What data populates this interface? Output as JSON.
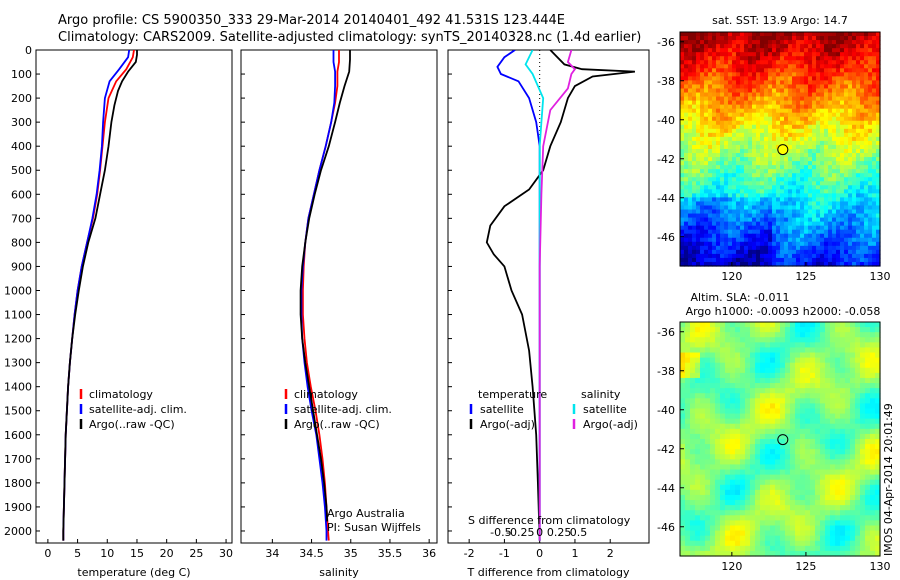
{
  "header": {
    "line1": "Argo profile: CS 5900350_333 29-Mar-2014 20140401_492 41.531S 123.444E",
    "line2": "Climatology: CARS2009. Satellite-adjusted climatology: synTS_20140328.nc (1.4d earlier)"
  },
  "footer_stamp": "IMOS 04-Apr-2014 20:01:49",
  "colors": {
    "climatology": "#ff0000",
    "satellite": "#0000ff",
    "argo": "#000000",
    "cyan": "#00e5ee",
    "magenta": "#e020e0"
  },
  "chart_data": [
    {
      "id": "temperature",
      "type": "line",
      "xlabel": "temperature (deg C)",
      "ylabel": "",
      "xlim": [
        -2,
        31
      ],
      "ylim": [
        2050,
        0
      ],
      "xticks": [
        0,
        5,
        10,
        15,
        20,
        25,
        30
      ],
      "yticks": [
        0,
        100,
        200,
        300,
        400,
        500,
        600,
        700,
        800,
        900,
        1000,
        1100,
        1200,
        1300,
        1400,
        1500,
        1600,
        1700,
        1800,
        1900,
        2000
      ],
      "legend": [
        "climatology",
        "satellite-adj. clim.",
        "Argo(..raw -QC)"
      ],
      "legend_position": "center",
      "series": [
        {
          "name": "climatology",
          "color": "red",
          "points": [
            [
              14.5,
              0
            ],
            [
              14.3,
              30
            ],
            [
              13.2,
              80
            ],
            [
              11.5,
              130
            ],
            [
              10.2,
              200
            ],
            [
              9.6,
              300
            ],
            [
              9.2,
              400
            ],
            [
              8.8,
              500
            ],
            [
              8.3,
              600
            ],
            [
              7.6,
              700
            ],
            [
              6.6,
              800
            ],
            [
              5.7,
              900
            ],
            [
              5,
              1000
            ],
            [
              4.5,
              1100
            ],
            [
              4.1,
              1200
            ],
            [
              3.7,
              1300
            ],
            [
              3.4,
              1400
            ],
            [
              3.2,
              1500
            ],
            [
              3,
              1600
            ],
            [
              2.9,
              1700
            ],
            [
              2.8,
              1800
            ],
            [
              2.7,
              1900
            ],
            [
              2.6,
              2000
            ],
            [
              2.6,
              2040
            ]
          ]
        },
        {
          "name": "satellite-adj. clim.",
          "color": "blue",
          "points": [
            [
              13.7,
              0
            ],
            [
              13.5,
              30
            ],
            [
              12,
              80
            ],
            [
              10.4,
              130
            ],
            [
              9.6,
              200
            ],
            [
              9.3,
              300
            ],
            [
              9.1,
              400
            ],
            [
              8.7,
              500
            ],
            [
              8.2,
              600
            ],
            [
              7.5,
              700
            ],
            [
              6.6,
              800
            ],
            [
              5.7,
              900
            ],
            [
              5,
              1000
            ],
            [
              4.5,
              1100
            ],
            [
              4.1,
              1200
            ],
            [
              3.7,
              1300
            ],
            [
              3.4,
              1400
            ],
            [
              3.2,
              1500
            ],
            [
              3,
              1600
            ],
            [
              2.9,
              1700
            ],
            [
              2.8,
              1800
            ],
            [
              2.7,
              1900
            ],
            [
              2.6,
              2000
            ],
            [
              2.6,
              2040
            ]
          ]
        },
        {
          "name": "Argo(..raw -QC)",
          "color": "black",
          "points": [
            [
              15,
              0
            ],
            [
              15,
              20
            ],
            [
              14.8,
              50
            ],
            [
              13.5,
              90
            ],
            [
              12.5,
              130
            ],
            [
              11.8,
              170
            ],
            [
              11.2,
              230
            ],
            [
              10.7,
              300
            ],
            [
              10.2,
              400
            ],
            [
              9.6,
              500
            ],
            [
              8.8,
              600
            ],
            [
              8,
              700
            ],
            [
              6.8,
              800
            ],
            [
              5.9,
              900
            ],
            [
              5.2,
              1000
            ],
            [
              4.6,
              1100
            ],
            [
              4.1,
              1200
            ],
            [
              3.7,
              1300
            ],
            [
              3.4,
              1400
            ],
            [
              3.2,
              1500
            ],
            [
              3,
              1600
            ],
            [
              2.9,
              1700
            ],
            [
              2.8,
              1800
            ],
            [
              2.7,
              1900
            ],
            [
              2.6,
              2000
            ],
            [
              2.6,
              2040
            ]
          ]
        }
      ]
    },
    {
      "id": "salinity",
      "type": "line",
      "xlabel": "salinity",
      "ylabel": "",
      "xlim": [
        33.6,
        36.1
      ],
      "ylim": [
        2050,
        0
      ],
      "xticks": [
        34,
        34.5,
        35,
        35.5,
        36
      ],
      "legend": [
        "climatology",
        "satellite-adj. clim.",
        "Argo(..raw -QC)"
      ],
      "legend_position": "center",
      "annotation": [
        "Argo Australia",
        "PI: Susan Wijffels"
      ],
      "series": [
        {
          "name": "climatology",
          "color": "red",
          "points": [
            [
              34.85,
              0
            ],
            [
              34.85,
              50
            ],
            [
              34.83,
              90
            ],
            [
              34.83,
              150
            ],
            [
              34.8,
              220
            ],
            [
              34.75,
              300
            ],
            [
              34.68,
              400
            ],
            [
              34.6,
              500
            ],
            [
              34.53,
              600
            ],
            [
              34.46,
              700
            ],
            [
              34.42,
              800
            ],
            [
              34.4,
              900
            ],
            [
              34.39,
              1000
            ],
            [
              34.39,
              1100
            ],
            [
              34.41,
              1200
            ],
            [
              34.44,
              1300
            ],
            [
              34.49,
              1400
            ],
            [
              34.55,
              1500
            ],
            [
              34.6,
              1600
            ],
            [
              34.64,
              1700
            ],
            [
              34.67,
              1800
            ],
            [
              34.69,
              1900
            ],
            [
              34.71,
              2000
            ],
            [
              34.72,
              2040
            ]
          ]
        },
        {
          "name": "satellite-adj. clim.",
          "color": "blue",
          "points": [
            [
              34.78,
              0
            ],
            [
              34.78,
              50
            ],
            [
              34.8,
              90
            ],
            [
              34.8,
              150
            ],
            [
              34.79,
              220
            ],
            [
              34.75,
              300
            ],
            [
              34.68,
              400
            ],
            [
              34.6,
              500
            ],
            [
              34.53,
              600
            ],
            [
              34.46,
              700
            ],
            [
              34.42,
              800
            ],
            [
              34.39,
              900
            ],
            [
              34.37,
              1000
            ],
            [
              34.37,
              1100
            ],
            [
              34.38,
              1200
            ],
            [
              34.41,
              1300
            ],
            [
              34.45,
              1400
            ],
            [
              34.5,
              1500
            ],
            [
              34.56,
              1600
            ],
            [
              34.6,
              1700
            ],
            [
              34.64,
              1800
            ],
            [
              34.67,
              1900
            ],
            [
              34.69,
              2000
            ],
            [
              34.69,
              2040
            ]
          ]
        },
        {
          "name": "Argo(..raw -QC)",
          "color": "black",
          "points": [
            [
              34.99,
              0
            ],
            [
              34.99,
              40
            ],
            [
              34.98,
              90
            ],
            [
              34.92,
              150
            ],
            [
              34.86,
              220
            ],
            [
              34.8,
              300
            ],
            [
              34.72,
              400
            ],
            [
              34.62,
              500
            ],
            [
              34.54,
              600
            ],
            [
              34.47,
              700
            ],
            [
              34.42,
              800
            ],
            [
              34.38,
              900
            ],
            [
              34.36,
              1000
            ],
            [
              34.36,
              1100
            ],
            [
              34.38,
              1200
            ],
            [
              34.42,
              1300
            ],
            [
              34.47,
              1400
            ],
            [
              34.52,
              1500
            ],
            [
              34.57,
              1600
            ],
            [
              34.62,
              1700
            ],
            [
              34.66,
              1800
            ],
            [
              34.69,
              1900
            ],
            [
              34.7,
              1960
            ]
          ]
        }
      ]
    },
    {
      "id": "difference",
      "type": "line",
      "xlabel": "T difference from climatology",
      "top_label": "S difference from climatology",
      "xlim": [
        -2.6,
        3.1
      ],
      "ylim": [
        2050,
        0
      ],
      "xticks_T": [
        -2,
        -1,
        0,
        1,
        2
      ],
      "xticks_S": [
        "-0.5",
        "-0.25",
        "0",
        "0.25",
        "0.5"
      ],
      "legend_T_title": "temperature",
      "legend_T": [
        "satellite",
        "Argo(-adj)"
      ],
      "legend_S_title": "salinity",
      "legend_S": [
        "satellite",
        "Argo(-adj)"
      ],
      "series": [
        {
          "name": "temperature satellite",
          "color": "blue",
          "points": [
            [
              -0.7,
              0
            ],
            [
              -1,
              30
            ],
            [
              -1.2,
              70
            ],
            [
              -1.1,
              100
            ],
            [
              -0.6,
              130
            ],
            [
              -0.3,
              200
            ],
            [
              -0.1,
              300
            ],
            [
              0,
              400
            ],
            [
              0,
              600
            ],
            [
              0,
              900
            ],
            [
              0,
              1200
            ],
            [
              0,
              1600
            ],
            [
              0,
              2040
            ]
          ]
        },
        {
          "name": "temperature Argo(-adj)",
          "color": "black",
          "points": [
            [
              0.3,
              0
            ],
            [
              0.7,
              60
            ],
            [
              1.2,
              80
            ],
            [
              2.7,
              90
            ],
            [
              1.5,
              110
            ],
            [
              1,
              150
            ],
            [
              0.8,
              200
            ],
            [
              0.6,
              300
            ],
            [
              0.3,
              400
            ],
            [
              0.1,
              500
            ],
            [
              -0.3,
              580
            ],
            [
              -1,
              650
            ],
            [
              -1.4,
              730
            ],
            [
              -1.5,
              800
            ],
            [
              -1.3,
              850
            ],
            [
              -1,
              900
            ],
            [
              -0.8,
              1000
            ],
            [
              -0.5,
              1100
            ],
            [
              -0.3,
              1250
            ],
            [
              -0.2,
              1400
            ],
            [
              -0.1,
              1600
            ],
            [
              -0.05,
              1800
            ],
            [
              0,
              2040
            ]
          ]
        },
        {
          "name": "salinity satellite",
          "color": "cyan",
          "points": [
            [
              -0.2,
              0
            ],
            [
              -0.4,
              60
            ],
            [
              -0.2,
              100
            ],
            [
              0.1,
              200
            ],
            [
              0.05,
              300
            ],
            [
              0,
              400
            ],
            [
              0,
              700
            ],
            [
              0,
              1000
            ],
            [
              0,
              2040
            ]
          ]
        },
        {
          "name": "salinity Argo(-adj)",
          "color": "magenta",
          "points": [
            [
              0.9,
              0
            ],
            [
              0.8,
              50
            ],
            [
              1,
              80
            ],
            [
              0.9,
              100
            ],
            [
              0.8,
              160
            ],
            [
              0.3,
              250
            ],
            [
              0.1,
              400
            ],
            [
              0.05,
              600
            ],
            [
              0,
              900
            ],
            [
              0,
              1200
            ],
            [
              0,
              2040
            ]
          ]
        }
      ]
    },
    {
      "id": "sst_map",
      "type": "heatmap",
      "title": "sat. SST: 13.9 Argo: 14.7",
      "xticks": [
        120,
        125,
        130
      ],
      "yticks": [
        -36,
        -38,
        -40,
        -42,
        -44,
        -46
      ],
      "xlim": [
        116.5,
        130
      ],
      "ylim": [
        -47.5,
        -35.5
      ],
      "marker": {
        "lon": 123.44,
        "lat": -41.53
      }
    },
    {
      "id": "sla_map",
      "type": "heatmap",
      "title": "Altim. SLA: -0.011",
      "subtitle": "Argo h1000: -0.0093 h2000: -0.058",
      "xticks": [
        120,
        125,
        130
      ],
      "yticks": [
        -36,
        -38,
        -40,
        -42,
        -44,
        -46
      ],
      "xlim": [
        116.5,
        130
      ],
      "ylim": [
        -47.5,
        -35.5
      ],
      "marker": {
        "lon": 123.44,
        "lat": -41.53
      }
    }
  ]
}
